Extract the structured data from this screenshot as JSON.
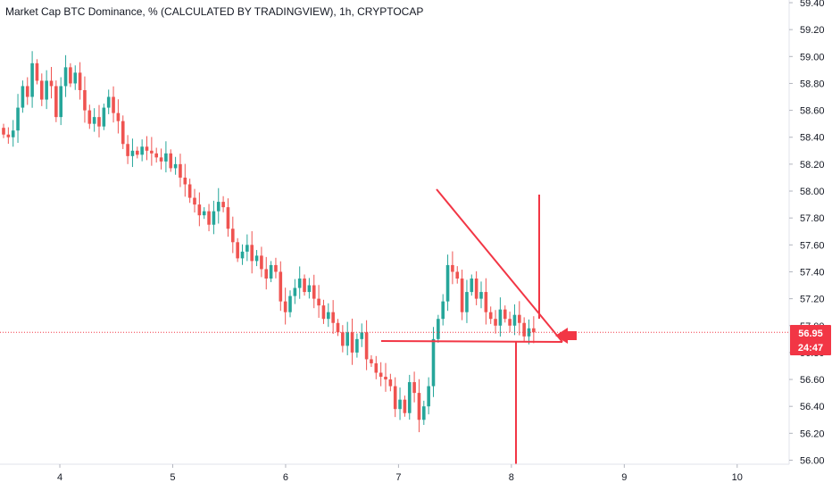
{
  "title": "Market Cap BTC Dominance, % (CALCULATED BY TRADINGVIEW), 1h, CRYPTOCAP",
  "price_tag": {
    "value": "56.95",
    "countdown": "24:47"
  },
  "colors": {
    "up": "#26a69a",
    "down": "#ef5350",
    "annotation": "#f23645",
    "axis_text": "#131722"
  },
  "chart_data": {
    "type": "candlestick",
    "title": "Market Cap BTC Dominance, % (CALCULATED BY TRADINGVIEW), 1h, CRYPTOCAP",
    "x_ticks": [
      "4",
      "5",
      "6",
      "7",
      "8",
      "9",
      "10"
    ],
    "x_tick_values": [
      4,
      5,
      6,
      7,
      8,
      9,
      10
    ],
    "y_ticks": [
      "56.00",
      "56.20",
      "56.40",
      "56.60",
      "56.80",
      "57.00",
      "57.20",
      "57.40",
      "57.60",
      "57.80",
      "58.00",
      "58.20",
      "58.40",
      "58.60",
      "58.80",
      "59.00",
      "59.20",
      "59.40"
    ],
    "ylim": [
      55.97,
      59.42
    ],
    "xlim": [
      3.47,
      10.84
    ],
    "grid": false,
    "last_price": 56.95,
    "candles_close": [
      58.42,
      58.4,
      58.45,
      58.62,
      58.78,
      58.7,
      58.95,
      58.82,
      58.68,
      58.82,
      58.78,
      58.55,
      58.78,
      58.92,
      58.8,
      58.88,
      58.75,
      58.6,
      58.5,
      58.55,
      58.48,
      58.62,
      58.7,
      58.58,
      58.52,
      58.35,
      58.26,
      58.3,
      58.27,
      58.33,
      58.3,
      58.28,
      58.25,
      58.22,
      58.28,
      58.17,
      58.2,
      58.1,
      58.05,
      57.95,
      57.9,
      57.82,
      57.85,
      57.75,
      57.85,
      57.92,
      57.88,
      57.72,
      57.62,
      57.5,
      57.55,
      57.6,
      57.48,
      57.52,
      57.42,
      57.35,
      57.45,
      57.4,
      57.18,
      57.1,
      57.22,
      57.28,
      57.35,
      57.25,
      57.3,
      57.2,
      57.15,
      57.05,
      57.1,
      57.02,
      56.95,
      56.85,
      56.95,
      56.8,
      56.9,
      56.95,
      56.75,
      56.72,
      56.65,
      56.62,
      56.6,
      56.55,
      56.38,
      56.45,
      56.35,
      56.58,
      56.5,
      56.3,
      56.4,
      56.55,
      56.9,
      57.05,
      57.18,
      57.45,
      57.4,
      57.35,
      57.1,
      57.25,
      57.35,
      57.2,
      57.25,
      57.1,
      57.05,
      57.0,
      57.12,
      57.05,
      57.0,
      57.08,
      57.02,
      56.92,
      56.98,
      56.95
    ]
  }
}
